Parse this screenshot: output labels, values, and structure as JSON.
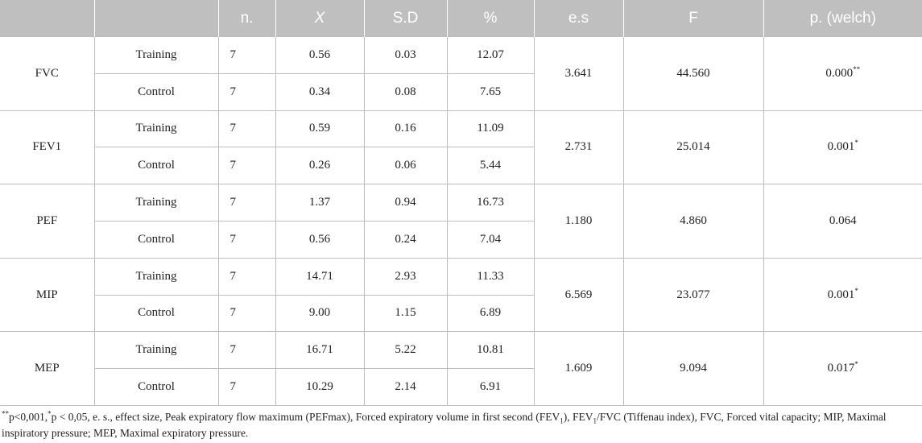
{
  "headers": [
    "",
    "",
    "n.",
    "X",
    "S.D",
    "%",
    "e.s",
    "F",
    "p. (welch)"
  ],
  "groups": [
    {
      "measure": "FVC",
      "es": "3.641",
      "f": "44.560",
      "p": "0.000",
      "p_mark": "**",
      "rows": [
        {
          "group": "Training",
          "n": "7",
          "x": "0.56",
          "sd": "0.03",
          "pct": "12.07"
        },
        {
          "group": "Control",
          "n": "7",
          "x": "0.34",
          "sd": "0.08",
          "pct": "7.65"
        }
      ]
    },
    {
      "measure": "FEV1",
      "es": "2.731",
      "f": "25.014",
      "p": "0.001",
      "p_mark": "*",
      "rows": [
        {
          "group": "Training",
          "n": "7",
          "x": "0.59",
          "sd": "0.16",
          "pct": "11.09"
        },
        {
          "group": "Control",
          "n": "7",
          "x": "0.26",
          "sd": "0.06",
          "pct": "5.44"
        }
      ]
    },
    {
      "measure": "PEF",
      "es": "1.180",
      "f": "4.860",
      "p": "0.064",
      "p_mark": "",
      "rows": [
        {
          "group": "Training",
          "n": "7",
          "x": "1.37",
          "sd": "0.94",
          "pct": "16.73"
        },
        {
          "group": "Control",
          "n": "7",
          "x": "0.56",
          "sd": "0.24",
          "pct": "7.04"
        }
      ]
    },
    {
      "measure": "MIP",
      "es": "6.569",
      "f": "23.077",
      "p": "0.001",
      "p_mark": "*",
      "rows": [
        {
          "group": "Training",
          "n": "7",
          "x": "14.71",
          "sd": "2.93",
          "pct": "11.33"
        },
        {
          "group": "Control",
          "n": "7",
          "x": "9.00",
          "sd": "1.15",
          "pct": "6.89"
        }
      ]
    },
    {
      "measure": "MEP",
      "es": "1.609",
      "f": "9.094",
      "p": "0.017",
      "p_mark": "*",
      "rows": [
        {
          "group": "Training",
          "n": "7",
          "x": "16.71",
          "sd": "5.22",
          "pct": "10.81"
        },
        {
          "group": "Control",
          "n": "7",
          "x": "10.29",
          "sd": "2.14",
          "pct": "6.91"
        }
      ]
    }
  ],
  "footnote": {
    "m1": "**",
    "t1": "p<0,001,",
    "m2": "*",
    "t2": "p < 0,05, e. s., effect size, Peak expiratory flow maximum (PEFmax), Forced expiratory volume in first second (FEV",
    "s1": "1",
    "t3": "), FEV",
    "s2": "1",
    "t4": "/FVC (Tiffenau index), FVC, Forced vital capacity; MIP, Maximal inspiratory pressure; MEP, Maximal expiratory pressure."
  }
}
